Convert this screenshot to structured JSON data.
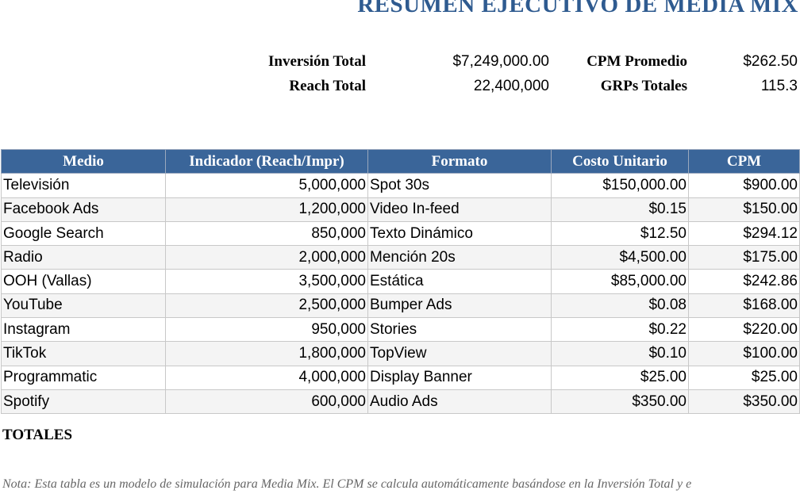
{
  "header": {
    "title": "RESUMEN EJECUTIVO DE MEDIA MIX"
  },
  "summary": [
    {
      "label": "Inversión Total",
      "value": "$7,249,000.00"
    },
    {
      "label": "CPM Promedio",
      "value": "$262.50"
    },
    {
      "label": "Reach Total",
      "value": "22,400,000"
    },
    {
      "label": "GRPs Totales",
      "value": "115.3"
    }
  ],
  "table": {
    "columns": [
      "Medio",
      "Indicador (Reach/Impr)",
      "Formato",
      "Costo Unitario",
      "CPM"
    ],
    "rows": [
      [
        "Televisión",
        "5,000,000",
        "Spot 30s",
        "$150,000.00",
        "$900.00"
      ],
      [
        "Facebook Ads",
        "1,200,000",
        "Video In-feed",
        "$0.15",
        "$150.00"
      ],
      [
        "Google Search",
        "850,000",
        "Texto Dinámico",
        "$12.50",
        "$294.12"
      ],
      [
        "Radio",
        "2,000,000",
        "Mención 20s",
        "$4,500.00",
        "$175.00"
      ],
      [
        "OOH (Vallas)",
        "3,500,000",
        "Estática",
        "$85,000.00",
        "$242.86"
      ],
      [
        "YouTube",
        "2,500,000",
        "Bumper Ads",
        "$0.08",
        "$168.00"
      ],
      [
        "Instagram",
        "950,000",
        "Stories",
        "$0.22",
        "$220.00"
      ],
      [
        "TikTok",
        "1,800,000",
        "TopView",
        "$0.10",
        "$100.00"
      ],
      [
        "Programmatic",
        "4,000,000",
        "Display Banner",
        "$25.00",
        "$25.00"
      ],
      [
        "Spotify",
        "600,000",
        "Audio Ads",
        "$350.00",
        "$350.00"
      ]
    ],
    "totals_label": "TOTALES"
  },
  "note": "Nota: Esta tabla es un modelo de simulación para Media Mix. El CPM se calcula automáticamente basándose en la Inversión Total y e"
}
